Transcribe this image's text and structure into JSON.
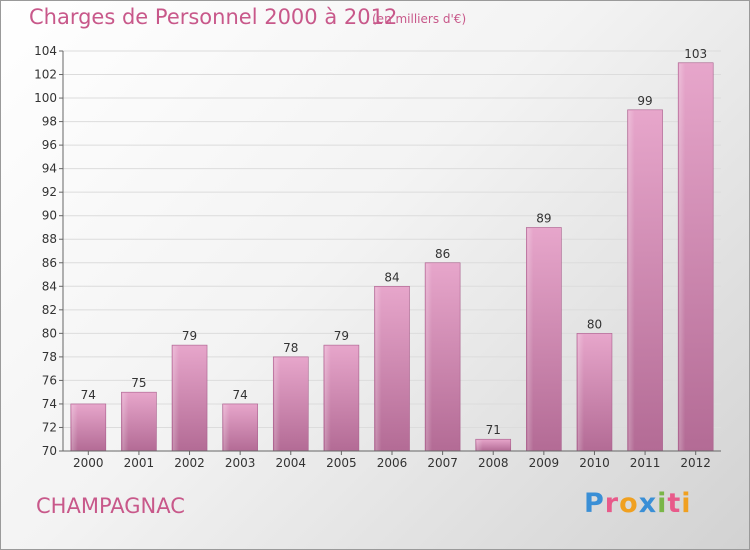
{
  "title": "Charges de Personnel 2000 à 2012",
  "subtitle": "(en milliers d'€)",
  "commune": "CHAMPAGNAC",
  "logo": {
    "letters": [
      "P",
      "r",
      "o",
      "x",
      "i",
      "t",
      "i"
    ],
    "colors": [
      "#3a8fd6",
      "#e85a8a",
      "#f0a020",
      "#3a8fd6",
      "#7ab648",
      "#e85a8a",
      "#f0a020"
    ]
  },
  "chart_data": {
    "type": "bar",
    "title": "Charges de Personnel 2000 à 2012",
    "subtitle": "(en milliers d'€)",
    "categories": [
      "2000",
      "2001",
      "2002",
      "2003",
      "2004",
      "2005",
      "2006",
      "2007",
      "2008",
      "2009",
      "2010",
      "2011",
      "2012"
    ],
    "values": [
      74,
      75,
      79,
      74,
      78,
      79,
      84,
      86,
      71,
      89,
      80,
      99,
      103
    ],
    "ylim": [
      70,
      104
    ],
    "yticks": [
      70,
      72,
      74,
      76,
      78,
      80,
      82,
      84,
      86,
      88,
      90,
      92,
      94,
      96,
      98,
      100,
      102,
      104
    ],
    "grid": true,
    "bar_color": "#d982b0"
  }
}
